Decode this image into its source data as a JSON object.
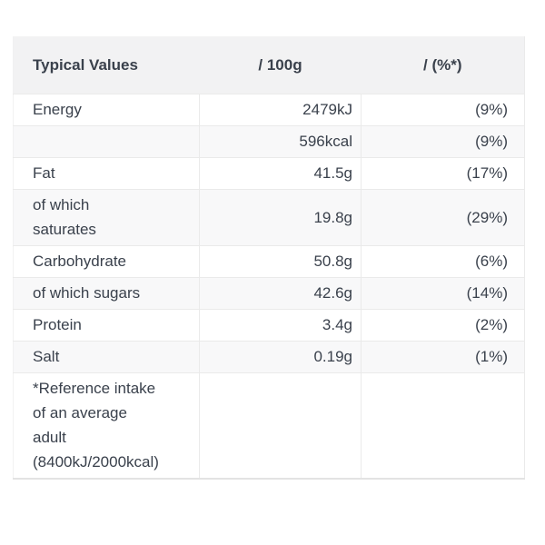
{
  "theme": {
    "text": "#3a414c",
    "header-bg": "#f2f2f3",
    "shaded-bg": "#f8f8f9",
    "border": "#eaeaea",
    "border-soft": "#f1f1f1",
    "border-strong": "#e3e3e3",
    "page-bg": "#ffffff"
  },
  "table": {
    "headers": {
      "typical_values": "Typical Values",
      "per_100g": "/ 100g",
      "percent": "/ (%*)"
    },
    "rows": [
      {
        "label": "Energy",
        "per_100g": "2479kJ",
        "percent": "(9%)"
      },
      {
        "label": "",
        "per_100g": "596kcal",
        "percent": "(9%)"
      },
      {
        "label": "Fat",
        "per_100g": "41.5g",
        "percent": "(17%)"
      },
      {
        "label": "of which\nsaturates",
        "per_100g": "19.8g",
        "percent": "(29%)"
      },
      {
        "label": "Carbohydrate",
        "per_100g": "50.8g",
        "percent": "(6%)"
      },
      {
        "label": "of which sugars",
        "per_100g": "42.6g",
        "percent": "(14%)"
      },
      {
        "label": "Protein",
        "per_100g": "3.4g",
        "percent": "(2%)"
      },
      {
        "label": "Salt",
        "per_100g": "0.19g",
        "percent": "(1%)"
      },
      {
        "label": "*Reference intake\nof an average\nadult\n(8400kJ/2000kcal)",
        "per_100g": "",
        "percent": ""
      }
    ]
  }
}
